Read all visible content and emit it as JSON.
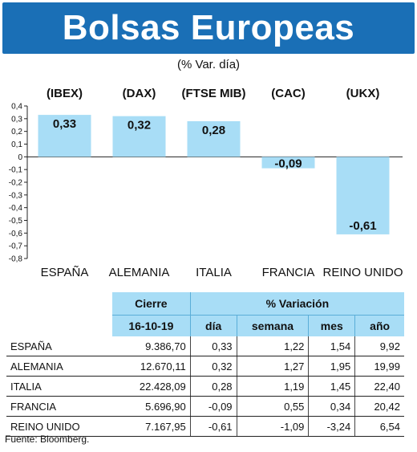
{
  "header": {
    "title": "Bolsas Europeas",
    "subtitle": "(% Var. día)"
  },
  "chart_data": {
    "type": "bar",
    "categories": [
      "ESPAÑA",
      "ALEMANIA",
      "ITALIA",
      "FRANCIA",
      "REINO UNIDO"
    ],
    "index_labels": [
      "(IBEX)",
      "(DAX)",
      "(FTSE MIB)",
      "(CAC)",
      "(UKX)"
    ],
    "values": [
      0.33,
      0.32,
      0.28,
      -0.09,
      -0.61
    ],
    "data_labels": [
      "0,33",
      "0,32",
      "0,28",
      "-0,09",
      "-0,61"
    ],
    "ylim": [
      -0.8,
      0.4
    ],
    "yticks": [
      "0,4",
      "0,3",
      "0,2",
      "0,1",
      "0",
      "-0,1",
      "-0,2",
      "-0,3",
      "-0,4",
      "-0,5",
      "-0,6",
      "-0,7",
      "-0,8"
    ],
    "bar_color": "#a8ddf6",
    "grid": false
  },
  "table": {
    "header_cierre": "Cierre",
    "header_variacion": "% Variación",
    "date": "16-10-19",
    "sub_headers": [
      "día",
      "semana",
      "mes",
      "año"
    ],
    "rows": [
      {
        "name": "ESPAÑA",
        "cierre": "9.386,70",
        "dia": "0,33",
        "semana": "1,22",
        "mes": "1,54",
        "ano": "9,92"
      },
      {
        "name": "ALEMANIA",
        "cierre": "12.670,11",
        "dia": "0,32",
        "semana": "1,27",
        "mes": "1,95",
        "ano": "19,99"
      },
      {
        "name": "ITALIA",
        "cierre": "22.428,09",
        "dia": "0,28",
        "semana": "1,19",
        "mes": "1,45",
        "ano": "22,40"
      },
      {
        "name": "FRANCIA",
        "cierre": "5.696,90",
        "dia": "-0,09",
        "semana": "0,55",
        "mes": "0,34",
        "ano": "20,42"
      },
      {
        "name": "REINO UNIDO",
        "cierre": "7.167,95",
        "dia": "-0,61",
        "semana": "-1,09",
        "mes": "-3,24",
        "ano": "6,54"
      }
    ]
  },
  "source": "Fuente: Bloomberg.",
  "colors": {
    "banner": "#1a6fb6",
    "table_header": "#a8ddf6"
  }
}
